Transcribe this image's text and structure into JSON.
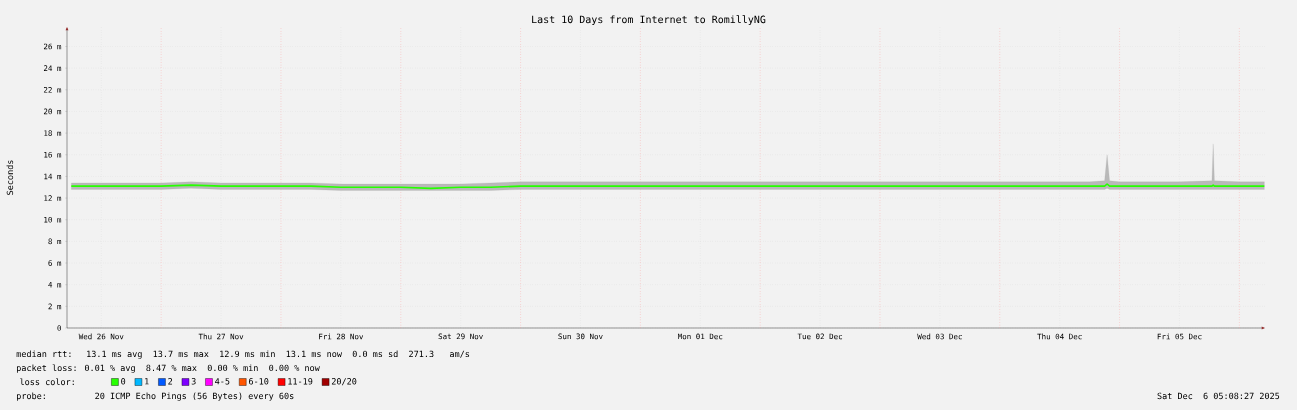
{
  "chart_data": {
    "type": "line",
    "title": "Last 10 Days from Internet to RomillyNG",
    "ylabel": "Seconds",
    "legend_title": "loss color:",
    "legend": "bottom",
    "grid": true,
    "xlim": [
      "2025-11-26T05:08",
      "2025-12-06T05:08"
    ],
    "xticks": [
      {
        "value": "2025-11-26T12:00",
        "label": "Wed 26 Nov"
      },
      {
        "value": "2025-11-27T12:00",
        "label": "Thu 27 Nov"
      },
      {
        "value": "2025-11-28T12:00",
        "label": "Fri 28 Nov"
      },
      {
        "value": "2025-11-29T12:00",
        "label": "Sat 29 Nov"
      },
      {
        "value": "2025-11-30T12:00",
        "label": "Sun 30 Nov"
      },
      {
        "value": "2025-12-01T12:00",
        "label": "Mon 01 Dec"
      },
      {
        "value": "2025-12-02T12:00",
        "label": "Tue 02 Dec"
      },
      {
        "value": "2025-12-03T12:00",
        "label": "Wed 03 Dec"
      },
      {
        "value": "2025-12-04T12:00",
        "label": "Thu 04 Dec"
      },
      {
        "value": "2025-12-05T12:00",
        "label": "Fri 05 Dec"
      }
    ],
    "ylim": [
      0,
      27.8
    ],
    "yticks": [
      0,
      {
        "value": 2,
        "label": "2 m"
      },
      {
        "value": 4,
        "label": "4 m"
      },
      {
        "value": 6,
        "label": "6 m"
      },
      {
        "value": 8,
        "label": "8 m"
      },
      {
        "value": 10,
        "label": "10 m"
      },
      {
        "value": 12,
        "label": "12 m"
      },
      {
        "value": 14,
        "label": "14 m"
      },
      {
        "value": 16,
        "label": "16 m"
      },
      {
        "value": 18,
        "label": "18 m"
      },
      {
        "value": 20,
        "label": "20 m"
      },
      {
        "value": 22,
        "label": "22 m"
      },
      {
        "value": 24,
        "label": "24 m"
      },
      {
        "value": 26,
        "label": "26 m"
      }
    ],
    "x": [
      "2025-11-26T06:00",
      "2025-11-26T12:00",
      "2025-11-26T18:00",
      "2025-11-27T00:00",
      "2025-11-27T06:00",
      "2025-11-27T12:00",
      "2025-11-27T18:00",
      "2025-11-28T00:00",
      "2025-11-28T06:00",
      "2025-11-28T12:00",
      "2025-11-28T18:00",
      "2025-11-29T00:00",
      "2025-11-29T06:00",
      "2025-11-29T12:00",
      "2025-11-29T18:00",
      "2025-11-30T00:00",
      "2025-11-30T06:00",
      "2025-11-30T12:00",
      "2025-11-30T18:00",
      "2025-12-01T00:00",
      "2025-12-01T06:00",
      "2025-12-01T12:00",
      "2025-12-01T18:00",
      "2025-12-02T00:00",
      "2025-12-02T06:00",
      "2025-12-02T12:00",
      "2025-12-02T18:00",
      "2025-12-03T00:00",
      "2025-12-03T06:00",
      "2025-12-03T12:00",
      "2025-12-03T18:00",
      "2025-12-04T00:00",
      "2025-12-04T06:00",
      "2025-12-04T12:00",
      "2025-12-04T18:00",
      "2025-12-04T21:00",
      "2025-12-04T21:30",
      "2025-12-04T22:00",
      "2025-12-05T00:00",
      "2025-12-05T06:00",
      "2025-12-05T12:00",
      "2025-12-05T18:30",
      "2025-12-05T18:45",
      "2025-12-05T19:00",
      "2025-12-06T00:00",
      "2025-12-06T05:00"
    ],
    "series": [
      {
        "name": "0",
        "color": "#26ff00",
        "values": [
          13.1,
          13.1,
          13.1,
          13.1,
          13.2,
          13.1,
          13.1,
          13.1,
          13.1,
          13.0,
          13.0,
          13.0,
          12.9,
          13.0,
          13.0,
          13.1,
          13.1,
          13.1,
          13.1,
          13.1,
          13.1,
          13.1,
          13.1,
          13.1,
          13.1,
          13.1,
          13.1,
          13.1,
          13.1,
          13.1,
          13.1,
          13.1,
          13.1,
          13.1,
          13.1,
          13.1,
          13.3,
          13.1,
          13.1,
          13.1,
          13.1,
          13.1,
          13.2,
          13.1,
          13.1,
          13.1
        ],
        "lower": [
          12.8,
          12.8,
          12.8,
          12.8,
          12.9,
          12.8,
          12.8,
          12.8,
          12.8,
          12.7,
          12.7,
          12.7,
          12.7,
          12.7,
          12.7,
          12.8,
          12.8,
          12.8,
          12.8,
          12.8,
          12.8,
          12.8,
          12.8,
          12.8,
          12.8,
          12.8,
          12.8,
          12.8,
          12.8,
          12.8,
          12.8,
          12.8,
          12.8,
          12.8,
          12.8,
          12.8,
          12.9,
          12.8,
          12.8,
          12.8,
          12.8,
          12.8,
          12.8,
          12.8,
          12.8,
          12.8
        ],
        "upper": [
          13.4,
          13.4,
          13.4,
          13.4,
          13.5,
          13.4,
          13.4,
          13.4,
          13.4,
          13.3,
          13.3,
          13.3,
          13.3,
          13.3,
          13.4,
          13.5,
          13.5,
          13.5,
          13.5,
          13.5,
          13.5,
          13.5,
          13.5,
          13.5,
          13.5,
          13.5,
          13.5,
          13.5,
          13.5,
          13.5,
          13.5,
          13.5,
          13.5,
          13.5,
          13.5,
          13.6,
          16.0,
          13.6,
          13.5,
          13.5,
          13.5,
          13.6,
          17.0,
          13.6,
          13.5,
          13.5
        ]
      },
      {
        "name": "1",
        "color": "#00b8ff",
        "values": [
          null,
          null,
          null,
          null,
          null,
          null,
          null,
          null,
          null,
          null,
          null,
          null,
          null,
          null,
          null,
          null,
          null,
          null,
          null,
          null,
          null,
          null,
          null,
          null,
          null,
          null,
          null,
          null,
          null,
          null,
          null,
          null,
          null,
          null,
          null,
          null,
          null,
          null,
          null,
          null,
          null,
          null,
          null,
          null,
          null,
          null
        ]
      },
      {
        "name": "2",
        "color": "#0059ff",
        "values": [
          null,
          null,
          null,
          null,
          null,
          null,
          null,
          null,
          null,
          null,
          null,
          null,
          null,
          null,
          null,
          null,
          null,
          null,
          null,
          null,
          null,
          null,
          null,
          null,
          null,
          null,
          null,
          null,
          null,
          null,
          null,
          null,
          null,
          null,
          null,
          null,
          null,
          null,
          null,
          null,
          null,
          null,
          null,
          null,
          null,
          null
        ]
      },
      {
        "name": "3",
        "color": "#7e00ff",
        "values": [
          null,
          null,
          null,
          null,
          null,
          null,
          null,
          null,
          null,
          null,
          null,
          null,
          null,
          null,
          null,
          null,
          null,
          null,
          null,
          null,
          null,
          null,
          null,
          null,
          null,
          null,
          null,
          null,
          null,
          null,
          null,
          null,
          null,
          null,
          null,
          null,
          null,
          null,
          null,
          null,
          null,
          null,
          null,
          null,
          null,
          null
        ]
      },
      {
        "name": "4-5",
        "color": "#ff00ff",
        "values": [
          null,
          null,
          null,
          null,
          null,
          null,
          null,
          null,
          null,
          null,
          null,
          null,
          null,
          null,
          null,
          null,
          null,
          null,
          null,
          null,
          null,
          null,
          null,
          null,
          null,
          null,
          null,
          null,
          null,
          null,
          null,
          null,
          null,
          null,
          null,
          null,
          null,
          null,
          null,
          null,
          null,
          null,
          null,
          null,
          null,
          null
        ]
      },
      {
        "name": "6-10",
        "color": "#ff5500",
        "values": [
          null,
          null,
          null,
          null,
          null,
          null,
          null,
          null,
          null,
          null,
          null,
          null,
          null,
          null,
          null,
          null,
          null,
          null,
          null,
          null,
          null,
          null,
          null,
          null,
          null,
          null,
          null,
          null,
          null,
          null,
          null,
          null,
          null,
          null,
          null,
          null,
          null,
          null,
          null,
          null,
          null,
          null,
          null,
          null,
          null,
          null
        ]
      },
      {
        "name": "11-19",
        "color": "#ff0000",
        "values": [
          null,
          null,
          null,
          null,
          null,
          null,
          null,
          null,
          null,
          null,
          null,
          null,
          null,
          null,
          null,
          null,
          null,
          null,
          null,
          null,
          null,
          null,
          null,
          null,
          null,
          null,
          null,
          null,
          null,
          null,
          null,
          null,
          null,
          null,
          null,
          null,
          null,
          null,
          null,
          null,
          null,
          null,
          null,
          null,
          null,
          null
        ]
      },
      {
        "name": "20/20",
        "color": "#a10000",
        "values": [
          null,
          null,
          null,
          null,
          null,
          null,
          null,
          null,
          null,
          null,
          null,
          null,
          null,
          null,
          null,
          null,
          null,
          null,
          null,
          null,
          null,
          null,
          null,
          null,
          null,
          null,
          null,
          null,
          null,
          null,
          null,
          null,
          null,
          null,
          null,
          null,
          null,
          null,
          null,
          null,
          null,
          null,
          null,
          null,
          null,
          null
        ]
      }
    ],
    "ref_lines": [
      {
        "axis": "x",
        "value": "2025-11-27T00:00",
        "color": "#ff9a9a",
        "line_style": "dotted"
      },
      {
        "axis": "x",
        "value": "2025-11-28T00:00",
        "color": "#ff9a9a",
        "line_style": "dotted"
      },
      {
        "axis": "x",
        "value": "2025-11-29T00:00",
        "color": "#ff9a9a",
        "line_style": "dotted"
      },
      {
        "axis": "x",
        "value": "2025-11-30T00:00",
        "color": "#ff9a9a",
        "line_style": "dotted"
      },
      {
        "axis": "x",
        "value": "2025-12-01T00:00",
        "color": "#ff9a9a",
        "line_style": "dotted"
      },
      {
        "axis": "x",
        "value": "2025-12-02T00:00",
        "color": "#ff9a9a",
        "line_style": "dotted"
      },
      {
        "axis": "x",
        "value": "2025-12-03T00:00",
        "color": "#ff9a9a",
        "line_style": "dotted"
      },
      {
        "axis": "x",
        "value": "2025-12-04T00:00",
        "color": "#ff9a9a",
        "line_style": "dotted"
      },
      {
        "axis": "x",
        "value": "2025-12-05T00:00",
        "color": "#ff9a9a",
        "line_style": "dotted"
      },
      {
        "axis": "x",
        "value": "2025-12-06T00:00",
        "color": "#ff9a9a",
        "line_style": "dotted"
      }
    ],
    "annotations": [
      "median rtt:  13.1 ms avg  13.7 ms max  12.9 ms min  13.1 ms now  0.0 ms sd  271.3   am/s",
      "packet loss: 0.01 % avg  8.47 % max  0.00 % min  0.00 % now",
      "probe:       20 ICMP Echo Pings (56 Bytes) every 60s",
      "Sat Dec  6 05:08:27 2025"
    ]
  }
}
